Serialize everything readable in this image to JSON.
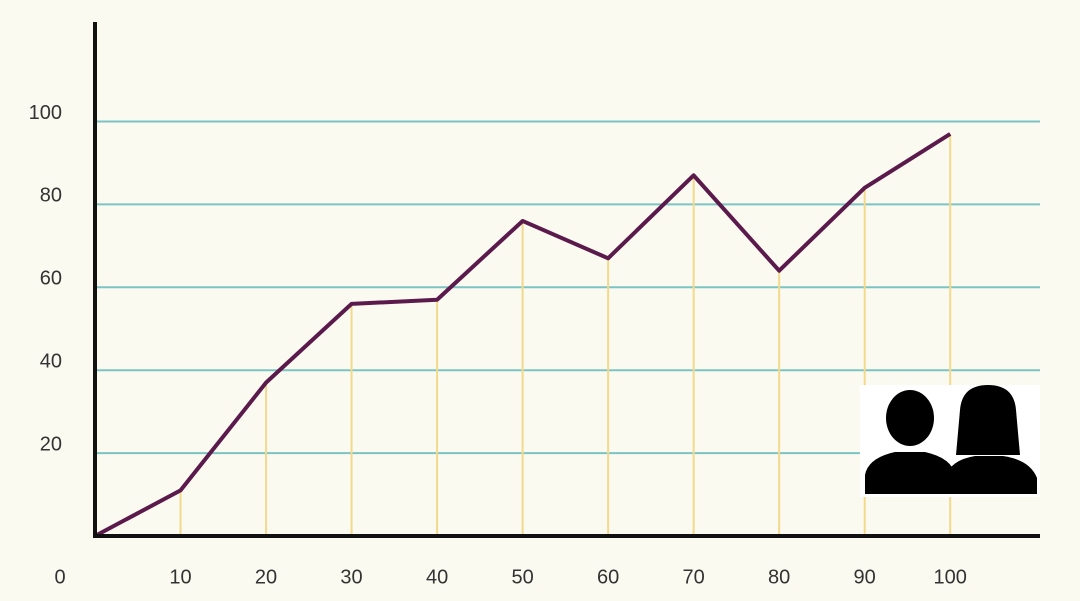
{
  "chart_data": {
    "type": "line",
    "x": [
      0,
      10,
      20,
      30,
      40,
      50,
      60,
      70,
      80,
      90,
      100
    ],
    "values": [
      0,
      11,
      37,
      56,
      57,
      76,
      67,
      87,
      64,
      84,
      97
    ],
    "color": "#5a1a4c",
    "xlim": [
      0,
      110.5
    ],
    "ylim": [
      0,
      124
    ],
    "xticks": [
      0,
      10,
      20,
      30,
      40,
      50,
      60,
      70,
      80,
      90,
      100
    ],
    "yticks": [
      20,
      40,
      60,
      80,
      100
    ],
    "grid": true,
    "drop_lines": true
  }
}
